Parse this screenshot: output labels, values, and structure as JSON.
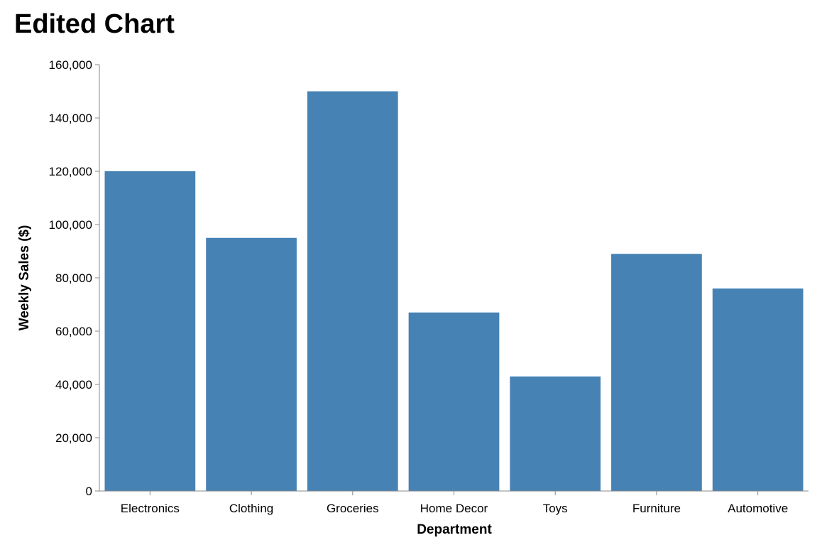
{
  "chart_data": {
    "type": "bar",
    "title": "Edited Chart",
    "xlabel": "Department",
    "ylabel": "Weekly Sales ($)",
    "categories": [
      "Electronics",
      "Clothing",
      "Groceries",
      "Home Decor",
      "Toys",
      "Furniture",
      "Automotive"
    ],
    "values": [
      120000,
      95000,
      150000,
      67000,
      43000,
      89000,
      76000
    ],
    "ylim": [
      0,
      160000
    ],
    "yticks": [
      0,
      20000,
      40000,
      60000,
      80000,
      100000,
      120000,
      140000,
      160000
    ],
    "grid": false,
    "legend": "none",
    "bar_color": "#4682b4",
    "axis_color": "#888888"
  }
}
